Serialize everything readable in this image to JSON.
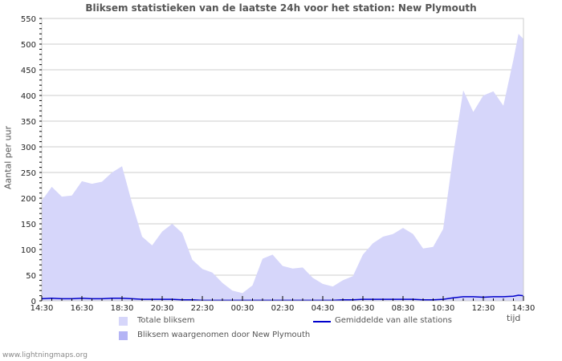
{
  "title": "Bliksem statistieken van de laatste 24h voor het station: New Plymouth",
  "footer": "www.lightningmaps.org",
  "legend": {
    "total": "Totale bliksem",
    "station": "Bliksem waargenomen door New Plymouth",
    "average": "Gemiddelde van alle stations"
  },
  "colors": {
    "total_fill": "#d6d6fa",
    "station_fill": "#b4b4f5",
    "average_line": "#0000cc",
    "grid": "#cccccc"
  },
  "chart_data": {
    "type": "area",
    "title": "Bliksem statistieken van de laatste 24h voor het station: New Plymouth",
    "xlabel": "tijd",
    "ylabel": "Aantal per uur",
    "ylim": [
      0,
      550
    ],
    "yticks": [
      0,
      50,
      100,
      150,
      200,
      250,
      300,
      350,
      400,
      450,
      500,
      550
    ],
    "xticks": [
      "14:30",
      "16:30",
      "18:30",
      "20:30",
      "22:30",
      "00:30",
      "02:30",
      "04:30",
      "06:30",
      "08:30",
      "10:30",
      "12:30",
      "14:30"
    ],
    "grid": true,
    "legend_position": "bottom",
    "x": [
      "14:30",
      "15:00",
      "15:30",
      "16:00",
      "16:30",
      "17:00",
      "17:30",
      "18:00",
      "18:30",
      "19:00",
      "19:30",
      "20:00",
      "20:30",
      "21:00",
      "21:30",
      "22:00",
      "22:30",
      "23:00",
      "23:30",
      "00:00",
      "00:30",
      "01:00",
      "01:30",
      "02:00",
      "02:30",
      "03:00",
      "03:30",
      "04:00",
      "04:30",
      "05:00",
      "05:30",
      "06:00",
      "06:30",
      "07:00",
      "07:30",
      "08:00",
      "08:30",
      "09:00",
      "09:30",
      "10:00",
      "10:30",
      "11:00",
      "11:30",
      "12:00",
      "12:30",
      "13:00",
      "13:30",
      "14:00",
      "14:15",
      "14:30"
    ],
    "series": [
      {
        "name": "Totale bliksem",
        "values": [
          195,
          222,
          203,
          205,
          233,
          228,
          232,
          250,
          262,
          190,
          125,
          108,
          135,
          150,
          132,
          80,
          62,
          55,
          35,
          20,
          15,
          30,
          82,
          90,
          68,
          63,
          65,
          45,
          33,
          28,
          40,
          48,
          90,
          112,
          125,
          130,
          142,
          130,
          102,
          105,
          140,
          285,
          410,
          368,
          400,
          408,
          380,
          470,
          520,
          510
        ]
      },
      {
        "name": "Bliksem waargenomen door New Plymouth",
        "values": [
          0,
          0,
          0,
          0,
          0,
          0,
          0,
          0,
          0,
          0,
          0,
          0,
          0,
          0,
          0,
          0,
          0,
          0,
          0,
          0,
          0,
          0,
          0,
          0,
          0,
          0,
          0,
          0,
          0,
          0,
          0,
          0,
          0,
          0,
          0,
          0,
          0,
          0,
          0,
          0,
          0,
          0,
          0,
          0,
          0,
          0,
          0,
          0,
          0,
          0
        ]
      },
      {
        "name": "Gemiddelde van alle stations",
        "values": [
          4,
          5,
          4,
          4,
          5,
          4,
          4,
          5,
          5,
          4,
          3,
          3,
          3,
          3,
          2,
          2,
          1,
          1,
          1,
          1,
          1,
          1,
          1,
          1,
          1,
          1,
          1,
          1,
          1,
          1,
          2,
          2,
          3,
          3,
          3,
          3,
          3,
          3,
          2,
          2,
          3,
          6,
          8,
          8,
          7,
          8,
          8,
          9,
          11,
          10
        ]
      }
    ]
  }
}
